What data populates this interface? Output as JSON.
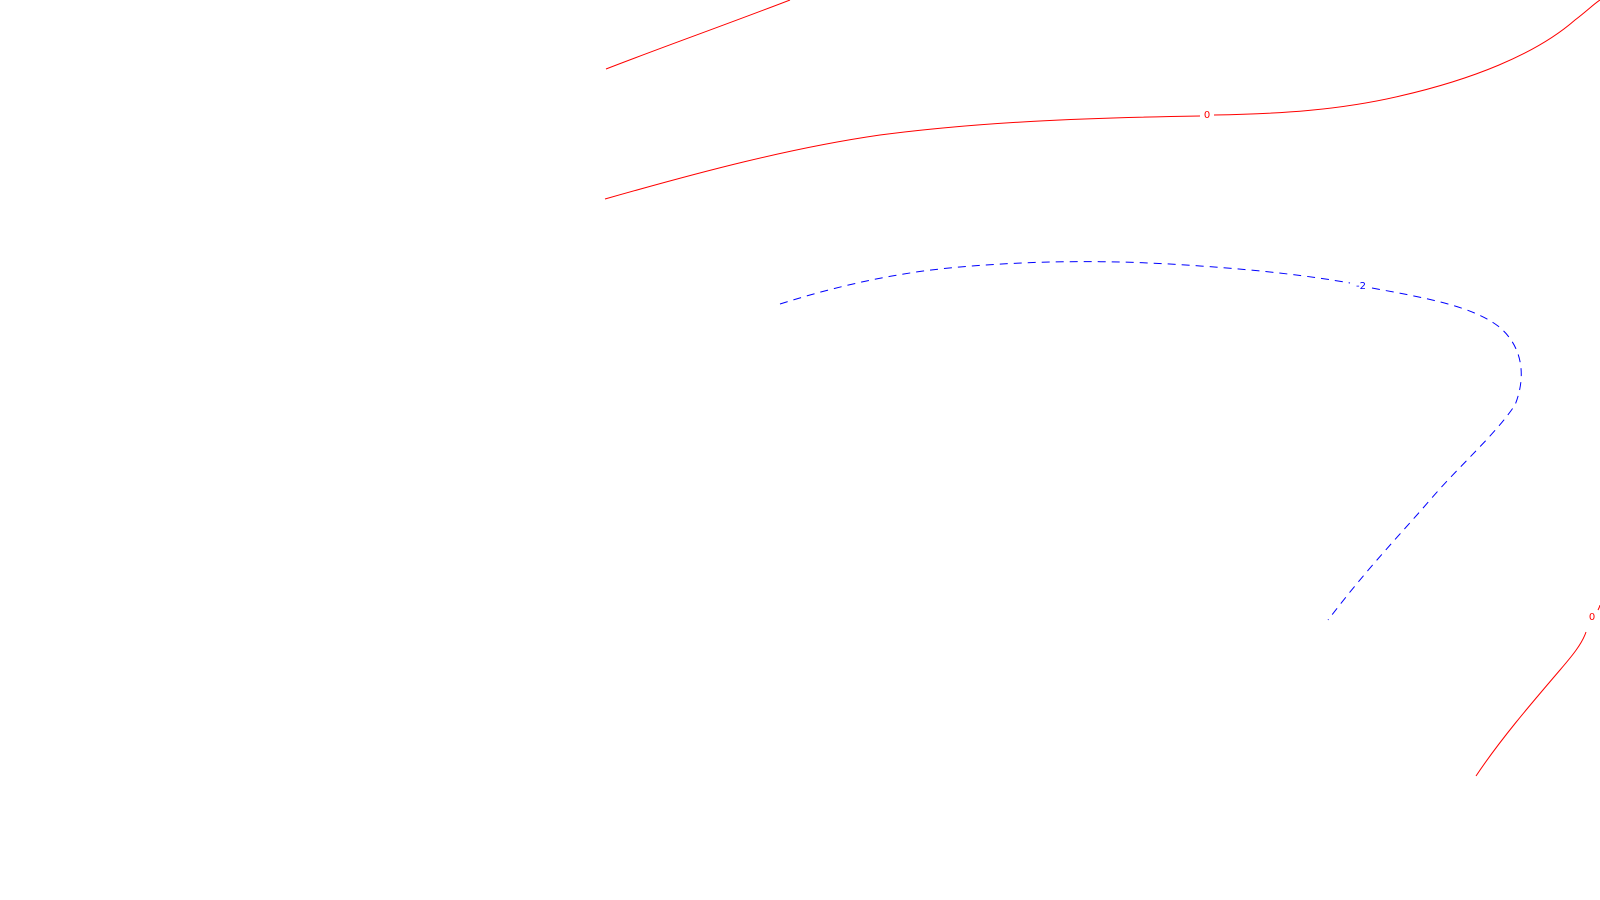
{
  "contours": [
    {
      "level_label": "0",
      "style": "solid",
      "color": "#ff0000"
    },
    {
      "level_label": "0",
      "style": "solid",
      "color": "#ff0000"
    },
    {
      "level_label": "-2",
      "style": "dashed",
      "color": "#0000ff"
    },
    {
      "level_label": "0",
      "style": "solid",
      "color": "#ff0000"
    }
  ]
}
